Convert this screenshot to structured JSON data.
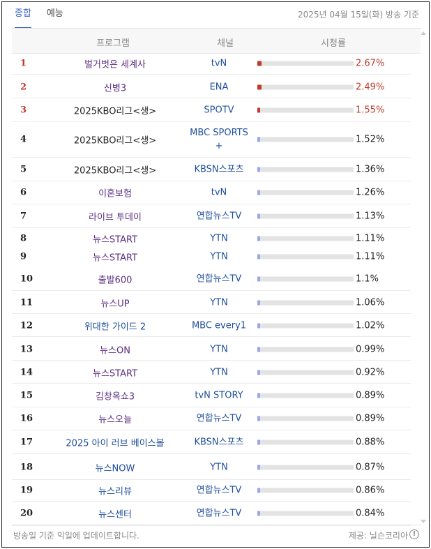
{
  "tabs": [
    {
      "label": "종합",
      "active": true
    },
    {
      "label": "예능",
      "active": false
    }
  ],
  "date": "2025년 04월 15일(화) 방송 기준",
  "columns": {
    "program": "프로그램",
    "channel": "채널",
    "rating": "시청률"
  },
  "rows": [
    {
      "rank": "1",
      "program": "벌거벗은 세계사",
      "channel": "tvN",
      "rating": "2.67%",
      "value": 2.67
    },
    {
      "rank": "2",
      "program": "신병3",
      "channel": "ENA",
      "rating": "2.49%",
      "value": 2.49
    },
    {
      "rank": "3",
      "program": "2025KBO리그<생>",
      "channel": "SPOTV",
      "rating": "1.55%",
      "value": 1.55
    },
    {
      "rank": "4",
      "program": "2025KBO리그<생>",
      "channel": "MBC SPORTS+",
      "rating": "1.52%",
      "value": 1.52
    },
    {
      "rank": "5",
      "program": "2025KBO리그<생>",
      "channel": "KBSN스포츠",
      "rating": "1.36%",
      "value": 1.36
    },
    {
      "rank": "6",
      "program": "이혼보험",
      "channel": "tvN",
      "rating": "1.26%",
      "value": 1.26
    },
    {
      "rank": "7",
      "program": "라이브 투데이",
      "channel": "연합뉴스TV",
      "rating": "1.13%",
      "value": 1.13
    },
    {
      "rank": "8",
      "program": "뉴스START",
      "channel": "YTN",
      "rating": "1.11%",
      "value": 1.11
    },
    {
      "rank": "9",
      "program": "뉴스START",
      "channel": "YTN",
      "rating": "1.11%",
      "value": 1.11
    },
    {
      "rank": "10",
      "program": "출발600",
      "channel": "연합뉴스TV",
      "rating": "1.1%",
      "value": 1.1
    },
    {
      "rank": "11",
      "program": "뉴스UP",
      "channel": "YTN",
      "rating": "1.06%",
      "value": 1.06
    },
    {
      "rank": "12",
      "program": "위대한 가이드 2",
      "channel": "MBC every1",
      "rating": "1.02%",
      "value": 1.02
    },
    {
      "rank": "13",
      "program": "뉴스ON",
      "channel": "YTN",
      "rating": "0.99%",
      "value": 0.99
    },
    {
      "rank": "14",
      "program": "뉴스START",
      "channel": "YTN",
      "rating": "0.92%",
      "value": 0.92
    },
    {
      "rank": "15",
      "program": "김창옥쇼3",
      "channel": "tvN STORY",
      "rating": "0.89%",
      "value": 0.89
    },
    {
      "rank": "16",
      "program": "뉴스오늘",
      "channel": "연합뉴스TV",
      "rating": "0.89%",
      "value": 0.89
    },
    {
      "rank": "17",
      "program": "2025 아이 러브 베이스볼",
      "channel": "KBSN스포츠",
      "rating": "0.88%",
      "value": 0.88
    },
    {
      "rank": "18",
      "program": "뉴스NOW",
      "channel": "YTN",
      "rating": "0.87%",
      "value": 0.87
    },
    {
      "rank": "19",
      "program": "뉴스리뷰",
      "channel": "연합뉴스TV",
      "rating": "0.86%",
      "value": 0.86
    },
    {
      "rank": "20",
      "program": "뉴스센터",
      "channel": "연합뉴스TV",
      "rating": "0.84%",
      "value": 0.84
    }
  ],
  "footer": {
    "note": "방송일 기준 익일에 업데이트합니다.",
    "provider": "제공: 닐슨코리아"
  },
  "colors": {
    "accent": "#3a5fc4",
    "top3": "#c0392b",
    "bar": "#9aa6e6"
  }
}
